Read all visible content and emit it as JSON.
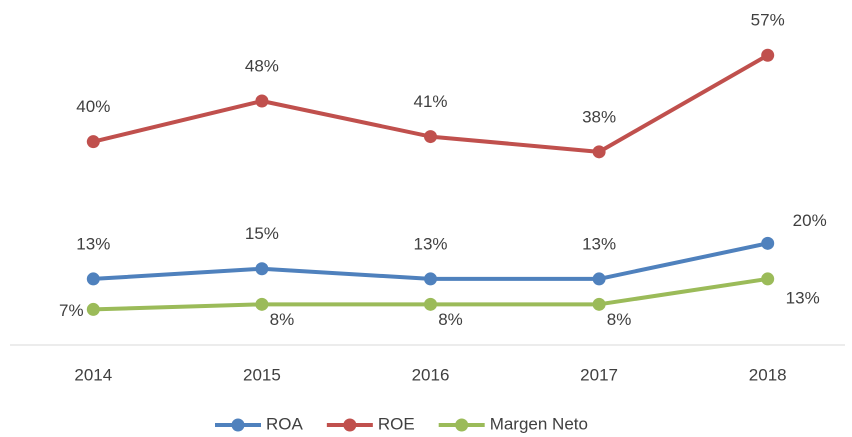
{
  "chart_data": {
    "type": "line",
    "categories": [
      "2014",
      "2015",
      "2016",
      "2017",
      "2018"
    ],
    "series": [
      {
        "name": "ROA",
        "color": "#4f81bd",
        "values": [
          13,
          15,
          13,
          13,
          20
        ],
        "value_labels": [
          "13%",
          "15%",
          "13%",
          "13%",
          "20%"
        ]
      },
      {
        "name": "ROE",
        "color": "#c0504d",
        "values": [
          40,
          48,
          41,
          38,
          57
        ],
        "value_labels": [
          "40%",
          "48%",
          "41%",
          "38%",
          "57%"
        ]
      },
      {
        "name": "Margen Neto",
        "color": "#9bbb59",
        "values": [
          7,
          8,
          8,
          8,
          13
        ],
        "value_labels": [
          "7%",
          "8%",
          "8%",
          "8%",
          "13%"
        ]
      }
    ],
    "ylim": [
      0,
      60
    ],
    "legend": "bottom"
  }
}
